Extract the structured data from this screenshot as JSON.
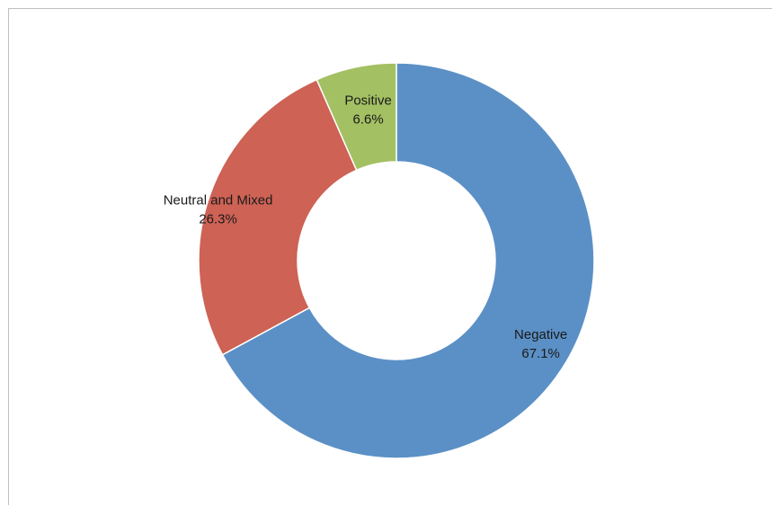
{
  "chart_data": {
    "type": "pie",
    "variant": "donut",
    "title": "",
    "categories": [
      "Negative",
      "Neutral and Mixed",
      "Positive"
    ],
    "values": [
      67.1,
      26.3,
      6.6
    ],
    "value_labels": [
      "67.1%",
      "26.3%",
      "6.6%"
    ],
    "unit": "%",
    "colors": [
      "#5b90c6",
      "#cd6255",
      "#a3c063"
    ],
    "start_angle_deg": 0,
    "direction": "clockwise",
    "legend": "none",
    "grid": false
  }
}
